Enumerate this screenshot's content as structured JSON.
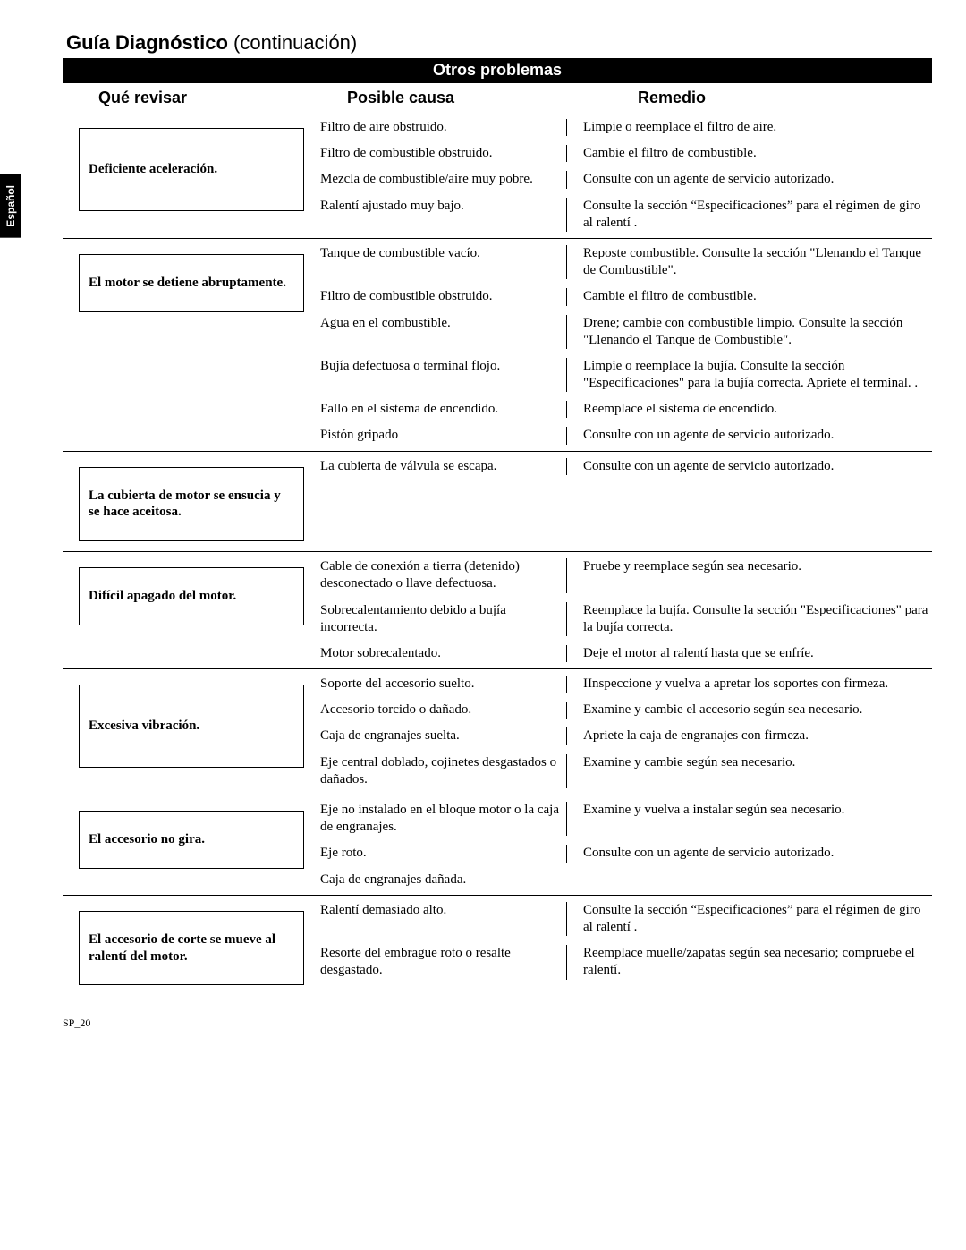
{
  "title_bold": "Guía Diagnóstico",
  "title_light": "(continuación)",
  "section_bar": "Otros problemas",
  "lang_tab": "Español",
  "headers": {
    "h1": "Qué revisar",
    "h2": "Posible causa",
    "h3": "Remedio"
  },
  "groups": [
    {
      "check": "Deficiente aceleración.",
      "box_class": "tall",
      "rows": [
        {
          "cause": "Filtro de aire obstruido.",
          "remedy": "Limpie o reemplace el filtro de aire."
        },
        {
          "cause": "Filtro de combustible obstruido.",
          "remedy": "Cambie el filtro de combustible."
        },
        {
          "cause": "Mezcla de combustible/aire muy pobre.",
          "remedy": "Consulte con un agente de servicio autorizado."
        },
        {
          "cause": "Ralentí ajustado muy bajo.",
          "remedy": "Consulte la sección “Especificaciones” para el régimen de giro al ralentí ."
        }
      ]
    },
    {
      "check": "El motor se detiene abruptamente.",
      "box_class": "",
      "rows": [
        {
          "cause": "Tanque de combustible vacío.",
          "remedy": "Reposte combustible. Consulte la  sección \"Llenando el Tanque de Combustible\"."
        },
        {
          "cause": "Filtro de combustible obstruido.",
          "remedy": "Cambie el filtro de combustible."
        },
        {
          "cause": "Agua en el combustible.",
          "remedy": "Drene; cambie con combustible limpio. Consulte la  sección \"Llenando el Tanque de Combustible\"."
        },
        {
          "cause": "Bujía defectuosa o terminal flojo.",
          "remedy": "Limpie o reemplace la bujía.  Consulte la sección \"Especificaciones\" para la bujía correcta. Apriete el terminal. ."
        },
        {
          "cause": "Fallo en el sistema de encendido.",
          "remedy": "Reemplace el sistema de encendido."
        },
        {
          "cause": "Pistón gripado",
          "remedy": "Consulte con un agente de servicio autorizado."
        }
      ]
    },
    {
      "check": "La cubierta de motor se ensucia y se hace aceitosa.",
      "box_class": "",
      "rows": [
        {
          "cause": "La cubierta de válvula se escapa.",
          "remedy": "Consulte con un agente de servicio autorizado."
        }
      ]
    },
    {
      "check": "Difícil apagado del motor.",
      "box_class": "",
      "rows": [
        {
          "cause": "Cable de conexión a tierra (detenido) desconectado o llave defectuosa.",
          "remedy": "Pruebe y reemplace según sea necesario."
        },
        {
          "cause": "Sobrecalentamiento debido a bujía incorrecta.",
          "remedy": "Reemplace la bujía. Consulte la sección \"Especificaciones\" para la bujía correcta."
        },
        {
          "cause": "Motor sobrecalentado.",
          "remedy": "Deje el motor al ralentí hasta que se enfríe."
        }
      ]
    },
    {
      "check": "Excesiva vibración.",
      "box_class": "tall",
      "rows": [
        {
          "cause": "Soporte del accesorio suelto.",
          "remedy": "IInspeccione y vuelva a apretar los soportes con firmeza."
        },
        {
          "cause": "Accesorio torcido o dañado.",
          "remedy": "Examine y cambie el accesorio según sea necesario."
        },
        {
          "cause": "Caja de engranajes suelta.",
          "remedy": "Apriete la caja de engranajes con firmeza."
        },
        {
          "cause": "Eje central doblado, cojinetes desgastados o dañados.",
          "remedy": "Examine y cambie según sea necesario."
        }
      ]
    },
    {
      "check": "El accesorio no gira.",
      "box_class": "",
      "rows": [
        {
          "cause": "Eje no instalado en el bloque motor o la caja de engranajes.",
          "remedy": "Examine y vuelva a instalar según sea necesario."
        },
        {
          "cause": "Eje roto.",
          "remedy": "Consulte con un agente de servicio autorizado."
        },
        {
          "cause": "Caja de engranajes dañada.",
          "remedy": ""
        }
      ]
    },
    {
      "check": "El accesorio de corte se mueve al ralentí del motor.",
      "box_class": "",
      "rows": [
        {
          "cause": "Ralentí demasiado alto.",
          "remedy": "Consulte la sección “Especificaciones” para el régimen de giro al ralentí ."
        },
        {
          "cause": "Resorte del embrague roto o resalte desgastado.",
          "remedy": "Reemplace muelle/zapatas según sea necesario; compruebe el ralentí."
        }
      ]
    }
  ],
  "footer": "SP_20"
}
